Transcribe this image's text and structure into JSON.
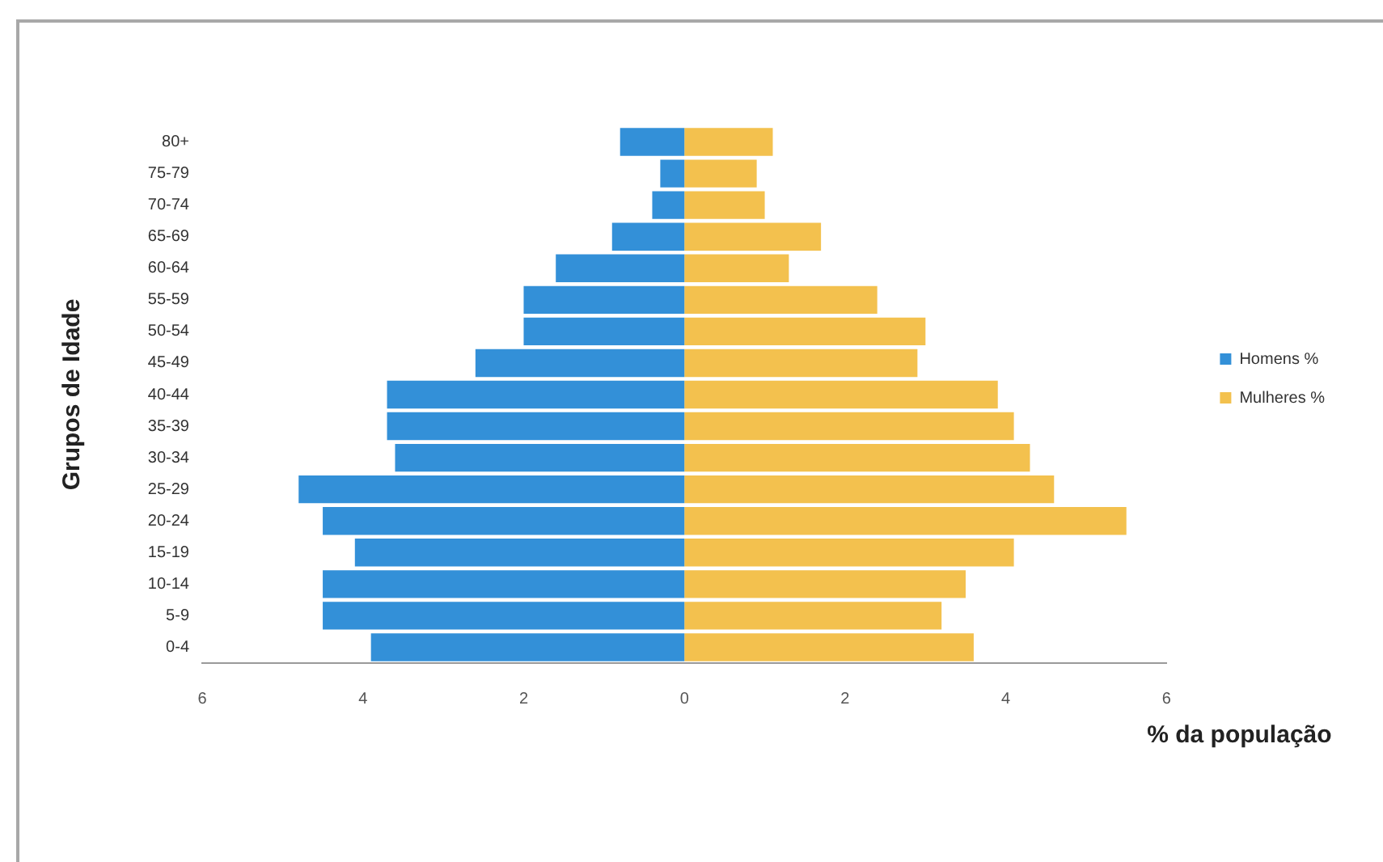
{
  "chart_data": {
    "type": "bar",
    "orientation": "horizontal",
    "stacked": true,
    "categories": [
      "80+",
      "75-79",
      "70-74",
      "65-69",
      "60-64",
      "55-59",
      "50-54",
      "45-49",
      "40-44",
      "35-39",
      "30-34",
      "25-29",
      "20-24",
      "15-19",
      "10-14",
      "5-9",
      "0-4"
    ],
    "series": [
      {
        "name": "Homens %",
        "color": "#3390d8",
        "values": [
          -0.8,
          -0.3,
          -0.4,
          -0.9,
          -1.6,
          -2.0,
          -2.0,
          -2.6,
          -3.7,
          -3.7,
          -3.6,
          -4.8,
          -4.5,
          -4.1,
          -4.5,
          -4.5,
          -3.9
        ]
      },
      {
        "name": "Mulheres %",
        "color": "#f3c14e",
        "values": [
          1.1,
          0.9,
          1.0,
          1.7,
          1.3,
          2.4,
          3.0,
          2.9,
          3.9,
          4.1,
          4.3,
          4.6,
          5.5,
          4.1,
          3.5,
          3.2,
          3.6
        ]
      }
    ],
    "xlabel": "% da população",
    "ylabel": "Grupos de Idade",
    "xlim": [
      -6,
      6
    ],
    "xticks": [
      {
        "value": -6,
        "label": "6"
      },
      {
        "value": -4,
        "label": "4"
      },
      {
        "value": -2,
        "label": "2"
      },
      0,
      2,
      4,
      6
    ],
    "legend": "right",
    "grid": false
  }
}
